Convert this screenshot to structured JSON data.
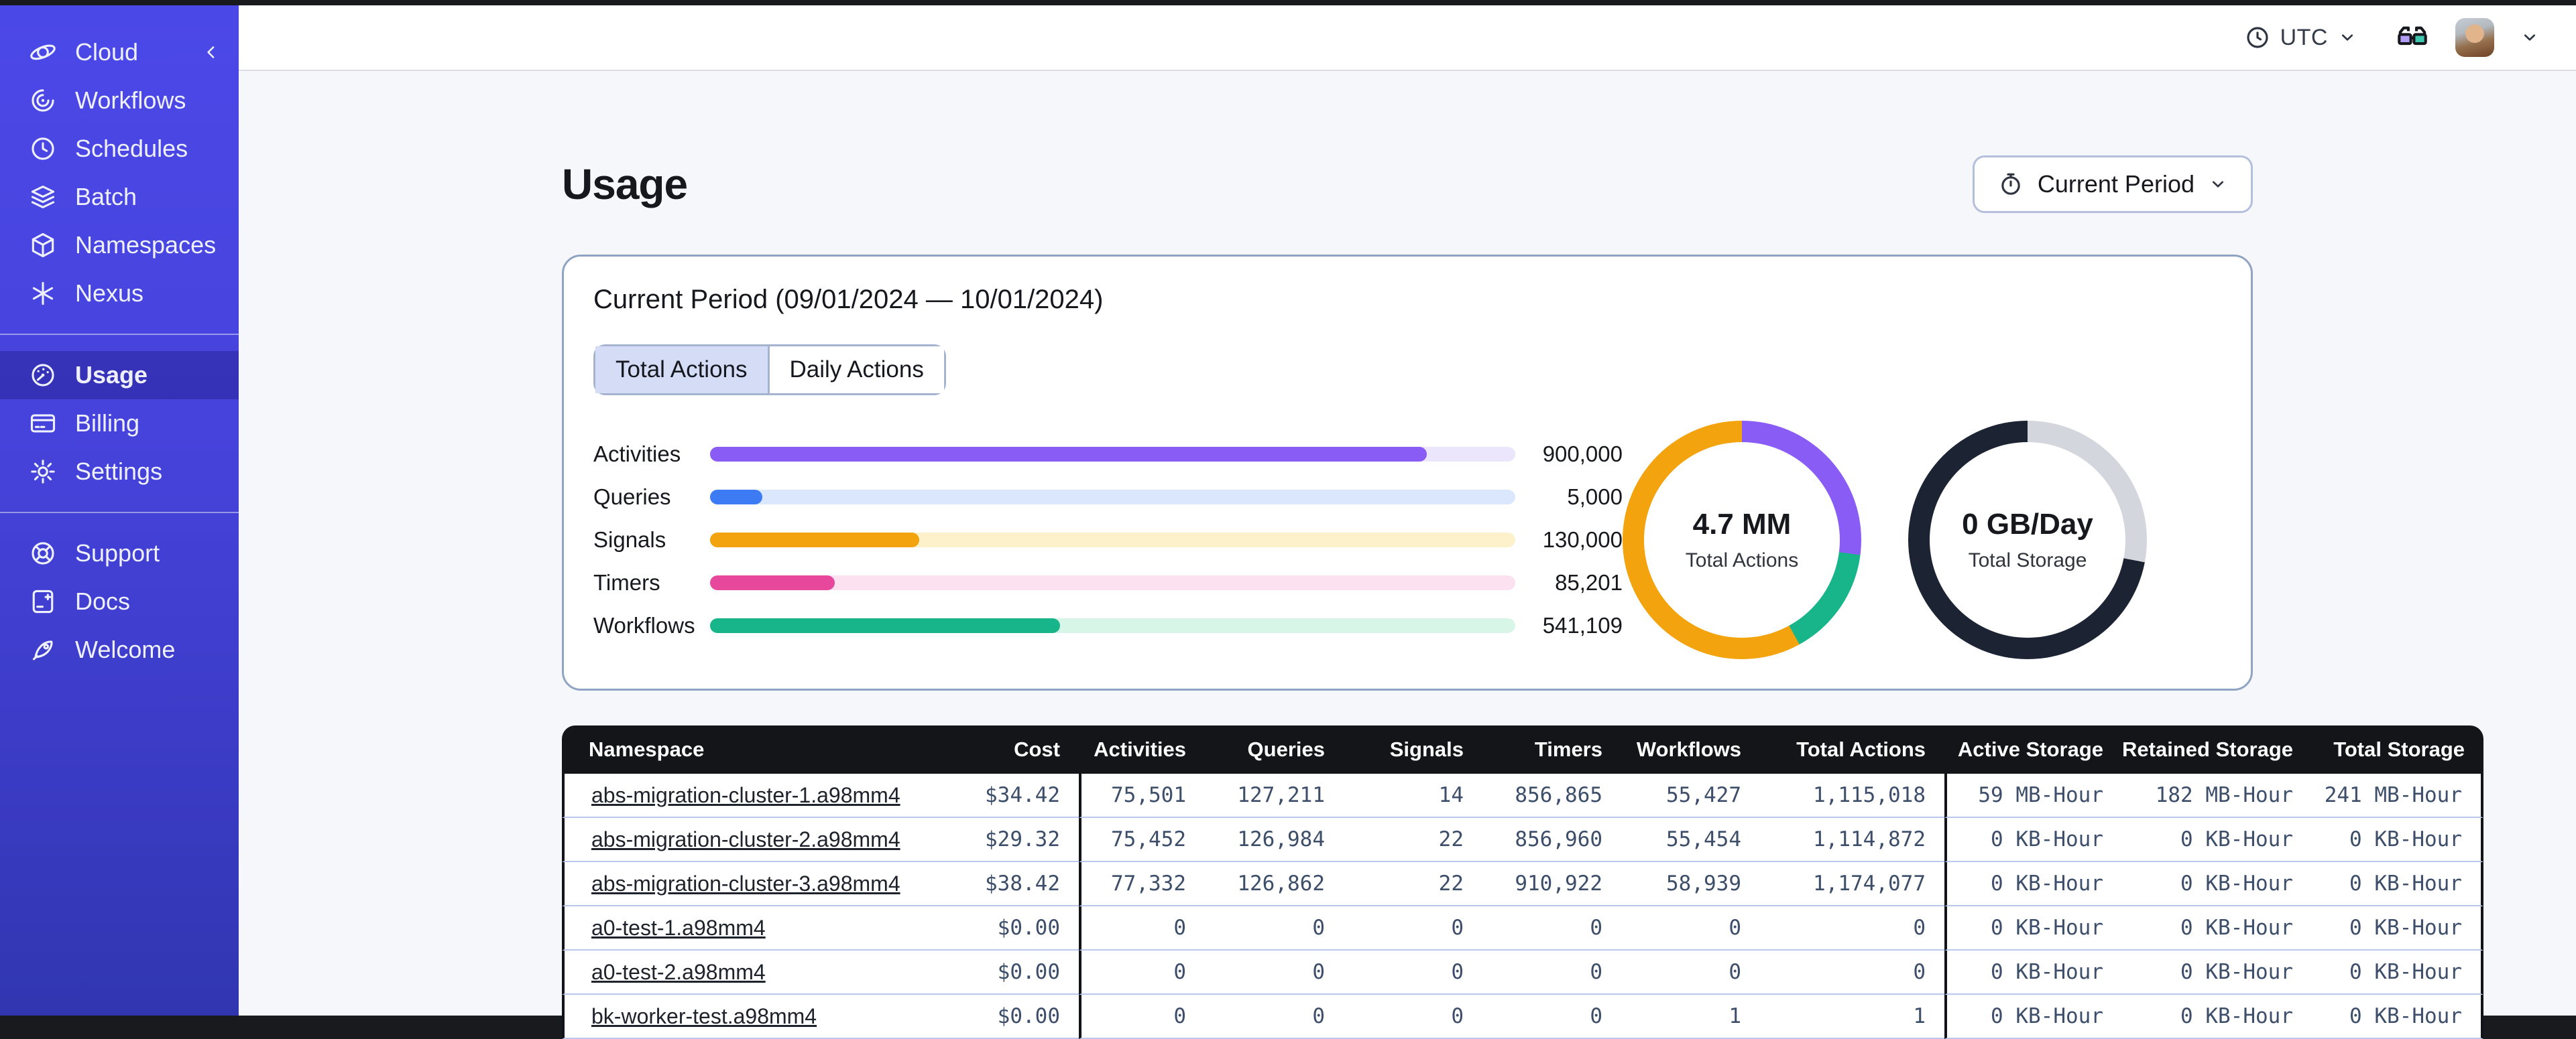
{
  "colors": {
    "sidebar_top": "#4B48E8",
    "sidebar_bottom": "#3136B0",
    "table_header": "#141519",
    "card_border": "#8FA3C3",
    "row_divider": "#B9C8EC"
  },
  "sidebar": {
    "brand": {
      "label": "Cloud",
      "icon": "orbit"
    },
    "groups": [
      {
        "items": [
          {
            "label": "Workflows",
            "icon": "workflows"
          },
          {
            "label": "Schedules",
            "icon": "schedules"
          },
          {
            "label": "Batch",
            "icon": "batch"
          },
          {
            "label": "Namespaces",
            "icon": "namespaces"
          },
          {
            "label": "Nexus",
            "icon": "nexus"
          }
        ]
      },
      {
        "items": [
          {
            "label": "Usage",
            "icon": "usage",
            "active": true
          },
          {
            "label": "Billing",
            "icon": "billing"
          },
          {
            "label": "Settings",
            "icon": "settings"
          }
        ]
      },
      {
        "items": [
          {
            "label": "Support",
            "icon": "support"
          },
          {
            "label": "Docs",
            "icon": "docs"
          },
          {
            "label": "Welcome",
            "icon": "welcome"
          }
        ]
      }
    ]
  },
  "topbar": {
    "timezone": "UTC"
  },
  "page": {
    "title": "Usage"
  },
  "period_selector": {
    "label": "Current Period",
    "icon": "stopwatch"
  },
  "usage_card": {
    "title": "Current Period (09/01/2024 — 10/01/2024)",
    "tabs": [
      {
        "label": "Total Actions",
        "active": true
      },
      {
        "label": "Daily Actions",
        "active": false
      }
    ]
  },
  "chart_data": [
    {
      "type": "bar",
      "orientation": "horizontal",
      "categories": [
        "Activities",
        "Queries",
        "Signals",
        "Timers",
        "Workflows"
      ],
      "values": [
        900000,
        5000,
        130000,
        85201,
        541109
      ],
      "value_labels": [
        "900,000",
        "5,000",
        "130,000",
        "85,201",
        "541,109"
      ],
      "fill_pct": [
        89,
        6.5,
        26,
        15.5,
        43.5
      ],
      "colors": [
        "#8A5CF6",
        "#3D7BF5",
        "#F2A30D",
        "#E8489B",
        "#17B589"
      ],
      "track_colors": [
        "#ECE6FC",
        "#DBE7FC",
        "#FCF1CB",
        "#FCE2F1",
        "#D8F6E8"
      ]
    },
    {
      "type": "pie",
      "title": "4.7 MM",
      "subtitle": "Total Actions",
      "segments": [
        {
          "name": "Activities",
          "color": "#8A5CF6",
          "pct": 27
        },
        {
          "name": "Workflows",
          "color": "#17B589",
          "pct": 15
        },
        {
          "name": "Signals",
          "color": "#F2A30D",
          "pct": 58
        }
      ]
    },
    {
      "type": "pie",
      "title": "0 GB/Day",
      "subtitle": "Total Storage",
      "segments": [
        {
          "name": "segment-light",
          "color": "#D3D6DC",
          "pct": 28
        },
        {
          "name": "segment-dark",
          "color": "#1C2433",
          "pct": 72
        }
      ]
    }
  ],
  "table": {
    "columns": [
      "Namespace",
      "Cost",
      "Activities",
      "Queries",
      "Signals",
      "Timers",
      "Workflows",
      "Total Actions",
      "Active Storage",
      "Retained Storage",
      "Total Storage"
    ],
    "rows": [
      [
        "abs-migration-cluster-1.a98mm4",
        "$34.42",
        "75,501",
        "127,211",
        "14",
        "856,865",
        "55,427",
        "1,115,018",
        "59 MB-Hour",
        "182 MB-Hour",
        "241 MB-Hour"
      ],
      [
        "abs-migration-cluster-2.a98mm4",
        "$29.32",
        "75,452",
        "126,984",
        "22",
        "856,960",
        "55,454",
        "1,114,872",
        "0 KB-Hour",
        "0 KB-Hour",
        "0 KB-Hour"
      ],
      [
        "abs-migration-cluster-3.a98mm4",
        "$38.42",
        "77,332",
        "126,862",
        "22",
        "910,922",
        "58,939",
        "1,174,077",
        "0 KB-Hour",
        "0 KB-Hour",
        "0 KB-Hour"
      ],
      [
        "a0-test-1.a98mm4",
        "$0.00",
        "0",
        "0",
        "0",
        "0",
        "0",
        "0",
        "0 KB-Hour",
        "0 KB-Hour",
        "0 KB-Hour"
      ],
      [
        "a0-test-2.a98mm4",
        "$0.00",
        "0",
        "0",
        "0",
        "0",
        "0",
        "0",
        "0 KB-Hour",
        "0 KB-Hour",
        "0 KB-Hour"
      ],
      [
        "bk-worker-test.a98mm4",
        "$0.00",
        "0",
        "0",
        "0",
        "0",
        "1",
        "1",
        "0 KB-Hour",
        "0 KB-Hour",
        "0 KB-Hour"
      ]
    ]
  }
}
